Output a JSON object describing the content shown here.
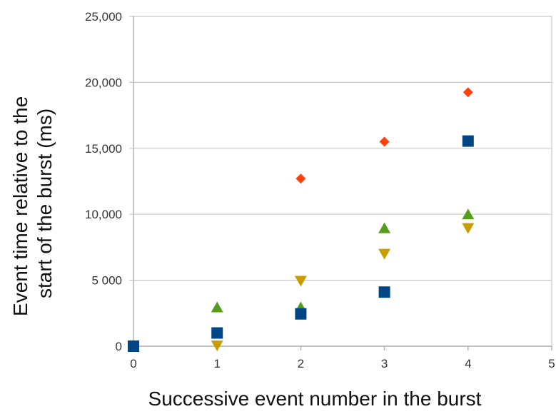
{
  "chart_data": {
    "type": "scatter",
    "xlabel": "Successive event number in the burst",
    "ylabel_lines": [
      "Event time relative to the",
      "start of the burst (ms)"
    ],
    "xlim": [
      0,
      5
    ],
    "ylim": [
      0,
      25000
    ],
    "x_ticks": [
      0,
      1,
      2,
      3,
      4,
      5
    ],
    "x_tick_labels": [
      "0",
      "1",
      "2",
      "3",
      "4",
      "5"
    ],
    "y_ticks": [
      0,
      5000,
      10000,
      15000,
      20000,
      25000
    ],
    "y_tick_labels": [
      "0",
      "5 000",
      "10,000",
      "15,000",
      "20,000",
      "25,000"
    ],
    "grid": "horizontal",
    "legend": "none",
    "series": [
      {
        "marker": "square",
        "color": "#004586",
        "points": [
          [
            0,
            0
          ],
          [
            1,
            1000
          ],
          [
            2,
            2450
          ],
          [
            3,
            4100
          ],
          [
            4,
            15550
          ]
        ]
      },
      {
        "marker": "diamond",
        "color": "#ff420e",
        "points": [
          [
            2,
            12700
          ],
          [
            3,
            15500
          ],
          [
            4,
            19250
          ]
        ]
      },
      {
        "marker": "triangle-up",
        "color": "#579d1c",
        "points": [
          [
            1,
            2950
          ],
          [
            2,
            2950
          ],
          [
            3,
            8950
          ],
          [
            4,
            10000
          ]
        ]
      },
      {
        "marker": "triangle-down",
        "color": "#c99c00",
        "points": [
          [
            1,
            50
          ],
          [
            2,
            4950
          ],
          [
            3,
            7000
          ],
          [
            4,
            8950
          ]
        ]
      }
    ]
  }
}
